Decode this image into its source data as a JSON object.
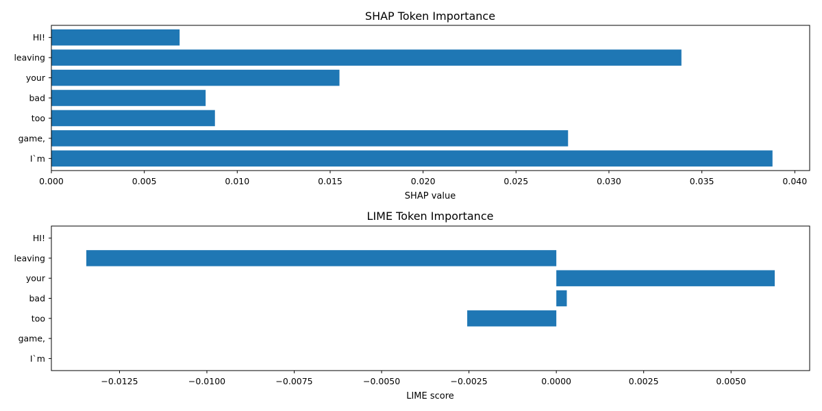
{
  "chart_data": [
    {
      "type": "bar",
      "orientation": "horizontal",
      "title": "SHAP Token Importance",
      "xlabel": "SHAP value",
      "ylabel": "",
      "categories": [
        "I`m",
        "game,",
        "too",
        "bad",
        "your",
        "leaving",
        "HI!"
      ],
      "values": [
        0.0388,
        0.0278,
        0.0088,
        0.0083,
        0.0155,
        0.0339,
        0.0069
      ],
      "xlim": [
        0,
        0.0408
      ],
      "xticks": [
        0.0,
        0.005,
        0.01,
        0.015,
        0.02,
        0.025,
        0.03,
        0.035,
        0.04
      ],
      "xtick_labels": [
        "0.000",
        "0.005",
        "0.010",
        "0.015",
        "0.020",
        "0.025",
        "0.030",
        "0.035",
        "0.040"
      ],
      "color": "#1f77b4",
      "grid": false
    },
    {
      "type": "bar",
      "orientation": "horizontal",
      "title": "LIME Token Importance",
      "xlabel": "LIME score",
      "ylabel": "",
      "categories": [
        "I`m",
        "game,",
        "too",
        "bad",
        "your",
        "leaving",
        "HI!"
      ],
      "values": [
        0,
        0,
        -0.00255,
        0.0003,
        0.00625,
        -0.01345,
        0
      ],
      "xlim": [
        -0.01445,
        0.00725
      ],
      "xticks": [
        -0.0125,
        -0.01,
        -0.0075,
        -0.005,
        -0.0025,
        0.0,
        0.0025,
        0.005
      ],
      "xtick_labels": [
        "−0.0125",
        "−0.0100",
        "−0.0075",
        "−0.0050",
        "−0.0025",
        "0.0000",
        "0.0025",
        "0.0050"
      ],
      "color": "#1f77b4",
      "grid": false
    }
  ]
}
